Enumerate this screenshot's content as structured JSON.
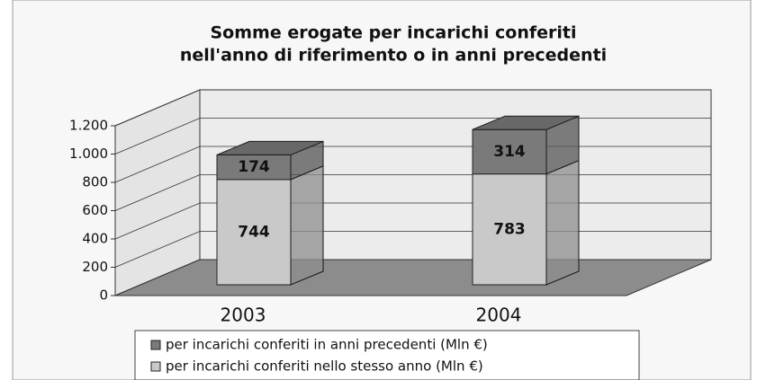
{
  "chart_data": {
    "type": "bar3d_stacked",
    "title": [
      "Somme erogate per incarichi conferiti",
      "nell'anno di riferimento o in anni precedenti"
    ],
    "categories": [
      "2003",
      "2004"
    ],
    "series": [
      {
        "name": "per incarichi conferiti nello stesso anno (Mln €)",
        "color": "#c9c9c9",
        "values": [
          744,
          783
        ]
      },
      {
        "name": "per incarichi conferiti in anni precedenti (Mln €)",
        "color": "#7a7a7a",
        "values": [
          174,
          314
        ]
      }
    ],
    "ylim": [
      0,
      1200
    ],
    "yticks": [
      0,
      200,
      400,
      600,
      800,
      {
        "value": 1000,
        "label": "1.000"
      },
      {
        "value": 1200,
        "label": "1.200"
      }
    ],
    "grid": true
  }
}
